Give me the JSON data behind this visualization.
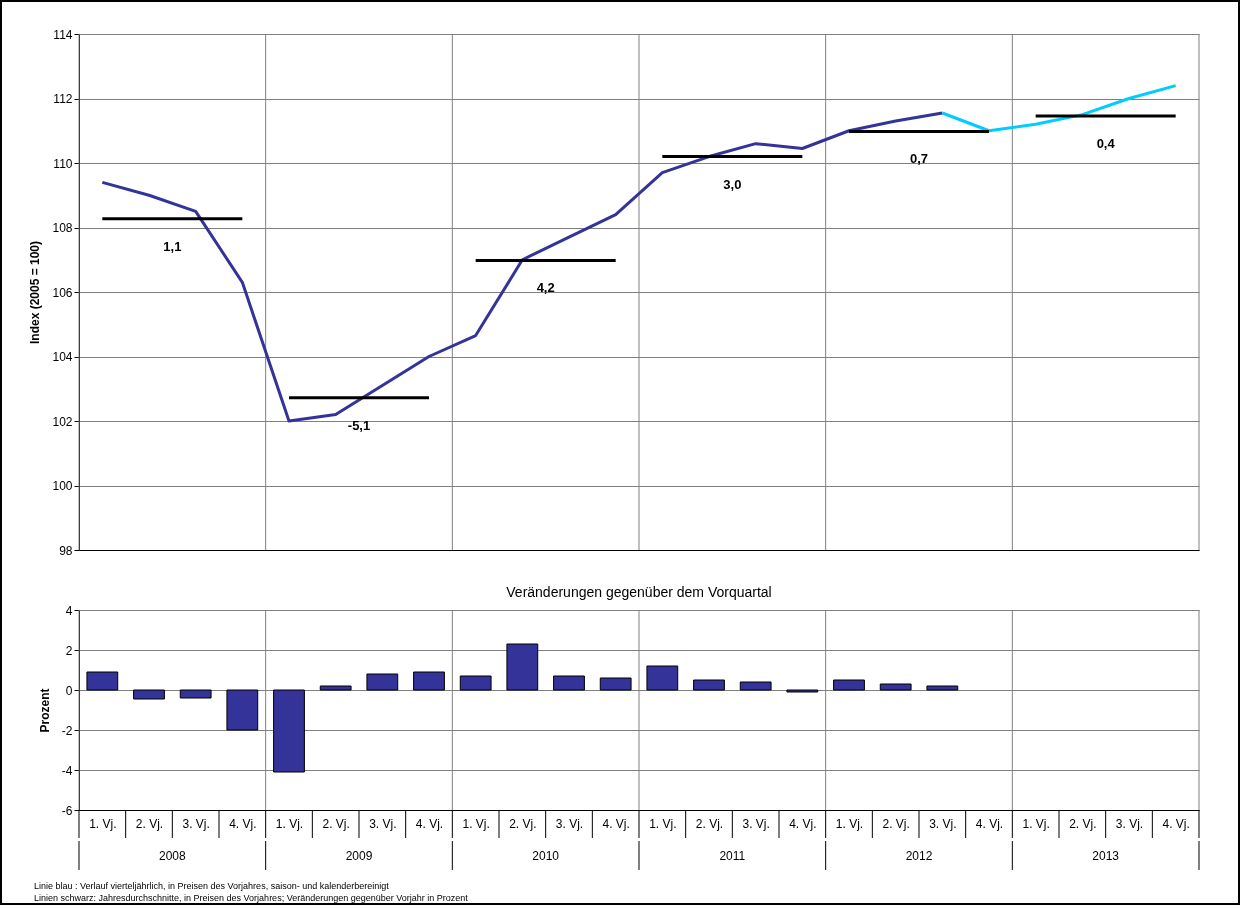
{
  "chart_data": [
    {
      "type": "line",
      "ylabel": "Index (2005 = 100)",
      "categories": [
        null,
        null,
        null,
        null,
        null,
        null,
        null,
        null,
        null,
        null,
        null,
        null,
        null,
        null,
        null,
        null,
        null,
        null,
        null,
        null,
        null,
        null,
        null,
        null
      ],
      "series": [
        {
          "color": "#333399",
          "values": [
            109.4,
            109.0,
            108.5,
            106.3,
            102.0,
            102.2,
            103.1,
            104.0,
            104.65,
            107.0,
            107.7,
            108.4,
            109.7,
            110.2,
            110.6,
            110.45,
            111.0,
            111.3,
            111.55,
            null,
            null,
            null,
            null,
            null
          ]
        },
        {
          "color": "#00ccff",
          "values": [
            null,
            null,
            null,
            null,
            null,
            null,
            null,
            null,
            null,
            null,
            null,
            null,
            null,
            null,
            null,
            null,
            null,
            null,
            111.55,
            111.0,
            111.2,
            111.5,
            112.0,
            112.4
          ]
        },
        {
          "color": "#000000",
          "values": [
            108.27,
            108.27,
            108.27,
            108.27,
            null,
            null,
            null,
            null,
            null,
            null,
            null,
            null,
            null,
            null,
            null,
            null,
            null,
            null,
            null,
            null,
            null,
            null,
            null,
            null
          ]
        },
        {
          "color": "#000000",
          "values": [
            null,
            null,
            null,
            null,
            102.72,
            102.72,
            102.72,
            102.72,
            null,
            null,
            null,
            null,
            null,
            null,
            null,
            null,
            null,
            null,
            null,
            null,
            null,
            null,
            null,
            null
          ]
        },
        {
          "color": "#000000",
          "values": [
            null,
            null,
            null,
            null,
            null,
            null,
            null,
            null,
            106.98,
            106.98,
            106.98,
            106.98,
            null,
            null,
            null,
            null,
            null,
            null,
            null,
            null,
            null,
            null,
            null,
            null
          ]
        },
        {
          "color": "#000000",
          "values": [
            null,
            null,
            null,
            null,
            null,
            null,
            null,
            null,
            null,
            null,
            null,
            null,
            110.2,
            110.2,
            110.2,
            110.2,
            null,
            null,
            null,
            null,
            null,
            null,
            null,
            null
          ]
        },
        {
          "color": "#000000",
          "values": [
            null,
            null,
            null,
            null,
            null,
            null,
            null,
            null,
            null,
            null,
            null,
            null,
            null,
            null,
            null,
            null,
            110.98,
            110.98,
            110.98,
            110.98,
            null,
            null,
            null,
            null
          ]
        },
        {
          "color": "#000000",
          "values": [
            null,
            null,
            null,
            null,
            null,
            null,
            null,
            null,
            null,
            null,
            null,
            null,
            null,
            null,
            null,
            null,
            null,
            null,
            null,
            null,
            111.46,
            111.46,
            111.46,
            111.46
          ]
        }
      ],
      "ylim": [
        98,
        114
      ],
      "yticks": [
        98,
        100,
        102,
        104,
        106,
        108,
        110,
        112,
        114
      ],
      "grid": true,
      "tick_labels": "y",
      "annotations": [
        {
          "text": "1,1",
          "y": 108.27
        },
        {
          "text": "-5,1",
          "y": 102.72
        },
        {
          "text": "4,2",
          "y": 106.98
        },
        {
          "text": "3,0",
          "y": 110.2
        },
        {
          "text": "0,7",
          "y": 110.98
        },
        {
          "text": "0,4",
          "y": 111.46
        },
        "Linie blau :  Verlauf vierteljährlich, in Preisen des Vorjahres, saison- und kalenderbereinigt",
        "Linien schwarz: Jahresdurchschnitte, in Preisen des Vorjahres; Veränderungen gegenüber Vorjahr in Prozent"
      ]
    },
    {
      "type": "bar",
      "title": "Veränderungen gegenüber dem Vorquartal",
      "ylabel": "Prozent",
      "categories": [
        "1. Vj.",
        "2. Vj.",
        "3. Vj.",
        "4. Vj.",
        "1. Vj.",
        "2. Vj.",
        "3. Vj.",
        "4. Vj.",
        "1. Vj.",
        "2. Vj.",
        "3. Vj.",
        "4. Vj.",
        "1. Vj.",
        "2. Vj.",
        "3. Vj.",
        "4. Vj.",
        "1. Vj.",
        "2. Vj.",
        "3. Vj.",
        "4. Vj.",
        "1. Vj.",
        "2. Vj.",
        "3. Vj.",
        "4. Vj."
      ],
      "values": [
        0.9,
        -0.45,
        -0.4,
        -2.0,
        -4.1,
        0.2,
        0.8,
        0.9,
        0.7,
        2.3,
        0.7,
        0.6,
        1.2,
        0.5,
        0.4,
        -0.1,
        0.5,
        0.3,
        0.2,
        null,
        null,
        null,
        null,
        null
      ],
      "color": "#333399",
      "ylim": [
        -6,
        4
      ],
      "yticks": [
        -6,
        -4,
        -2,
        0,
        2,
        4
      ],
      "grid": true,
      "annotations": [
        "2008",
        "2009",
        "2010",
        "2011",
        "2012",
        "2013"
      ]
    }
  ]
}
